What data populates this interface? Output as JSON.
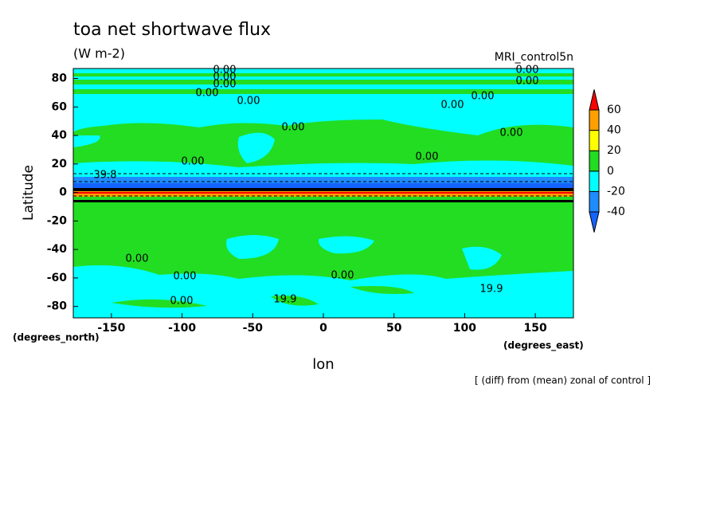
{
  "chart_data": {
    "type": "contour",
    "title": "toa net shortwave flux",
    "subtitle": "(W m-2)",
    "dataset_label": "MRI_control5n",
    "x_label": "lon",
    "y_label": "Latitude",
    "y_unit_label": "(degrees_north)",
    "x_unit_label": "(degrees_east)",
    "footer": "[ (diff) from (mean) zonal of control ]",
    "xlim": [
      -177,
      177
    ],
    "ylim": [
      -88,
      87
    ],
    "xticks": [
      -150,
      -100,
      -50,
      0,
      50,
      100,
      150
    ],
    "yticks": [
      -80,
      -60,
      -40,
      -20,
      0,
      20,
      40,
      60,
      80
    ],
    "colorbar": {
      "levels": [
        -40,
        -20,
        0,
        20,
        40,
        60
      ],
      "colors": [
        "#1464ff",
        "#1e8cff",
        "#00ffff",
        "#22dd22",
        "#ffff00",
        "#ff9f00",
        "#ff0000"
      ]
    },
    "contour_labels": [
      "0.00",
      "0.00",
      "0.00",
      "0.00",
      "0.00",
      "0.00",
      "0.00",
      "0.00",
      "0.00",
      "0.00",
      "0.00",
      "0.00",
      "0.00",
      "0.00",
      "0.00",
      "0.00",
      "0.00",
      "19.9",
      "19.9",
      "39.8"
    ]
  }
}
